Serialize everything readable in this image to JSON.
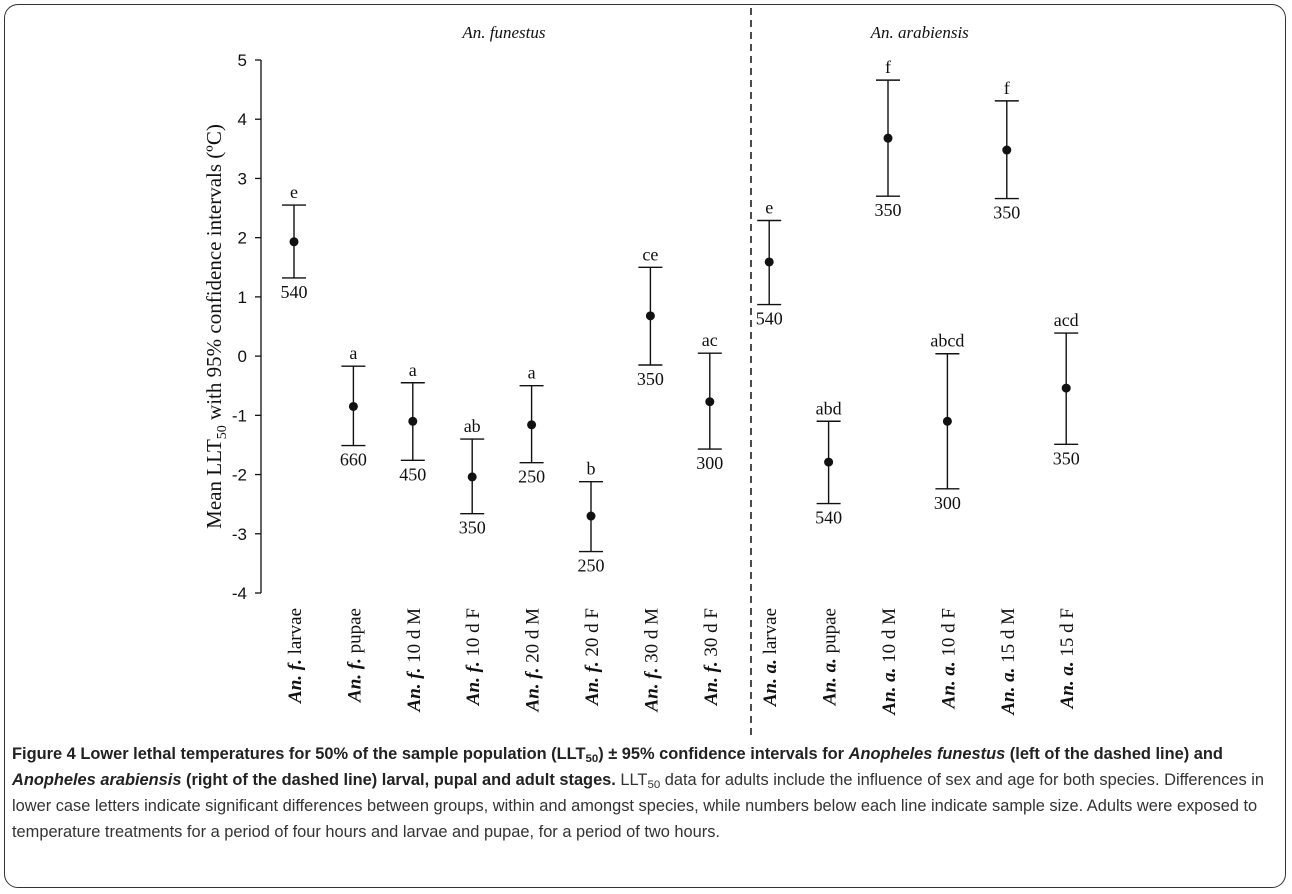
{
  "chart_data": {
    "type": "scatter",
    "style": "point estimates with 95% confidence interval error bars",
    "ylabel_parts": {
      "pre": "Mean LLT",
      "sub": "50",
      "post": " with 95% confidence intervals (ºC)"
    },
    "ylim": [
      -4,
      5
    ],
    "yticks": [
      5,
      4,
      3,
      2,
      1,
      0,
      -1,
      -2,
      -3,
      -4
    ],
    "grid": false,
    "group_divider_between": [
      7,
      8
    ],
    "groups": [
      {
        "name": "An. funestus",
        "indices": [
          0,
          1,
          2,
          3,
          4,
          5,
          6,
          7
        ]
      },
      {
        "name": "An. arabiensis",
        "indices": [
          8,
          9,
          10,
          11,
          12,
          13
        ]
      }
    ],
    "points": [
      {
        "sp": "An. f.",
        "stage": "larvae",
        "mean": 1.93,
        "lower": 1.32,
        "upper": 2.55,
        "letter": "e",
        "n": "540"
      },
      {
        "sp": "An. f.",
        "stage": "pupae",
        "mean": -0.85,
        "lower": -1.51,
        "upper": -0.17,
        "letter": "a",
        "n": "660"
      },
      {
        "sp": "An. f.",
        "stage": "10 d M",
        "mean": -1.1,
        "lower": -1.76,
        "upper": -0.45,
        "letter": "a",
        "n": "450"
      },
      {
        "sp": "An. f.",
        "stage": "10 d F",
        "mean": -2.04,
        "lower": -2.66,
        "upper": -1.4,
        "letter": "ab",
        "n": "350"
      },
      {
        "sp": "An. f.",
        "stage": "20 d M",
        "mean": -1.16,
        "lower": -1.8,
        "upper": -0.5,
        "letter": "a",
        "n": "250"
      },
      {
        "sp": "An. f.",
        "stage": "20 d F",
        "mean": -2.7,
        "lower": -3.3,
        "upper": -2.12,
        "letter": "b",
        "n": "250"
      },
      {
        "sp": "An. f.",
        "stage": "30 d M",
        "mean": 0.68,
        "lower": -0.15,
        "upper": 1.5,
        "letter": "ce",
        "n": "350"
      },
      {
        "sp": "An. f.",
        "stage": "30 d F",
        "mean": -0.77,
        "lower": -1.57,
        "upper": 0.05,
        "letter": "ac",
        "n": "300"
      },
      {
        "sp": "An. a.",
        "stage": "larvae",
        "mean": 1.59,
        "lower": 0.87,
        "upper": 2.29,
        "letter": "e",
        "n": "540"
      },
      {
        "sp": "An. a.",
        "stage": "pupae",
        "mean": -1.79,
        "lower": -2.49,
        "upper": -1.1,
        "letter": "abd",
        "n": "540"
      },
      {
        "sp": "An. a.",
        "stage": "10 d M",
        "mean": 3.68,
        "lower": 2.7,
        "upper": 4.66,
        "letter": "f",
        "n": "350"
      },
      {
        "sp": "An. a.",
        "stage": "10 d F",
        "mean": -1.1,
        "lower": -2.24,
        "upper": 0.04,
        "letter": "abcd",
        "n": "300"
      },
      {
        "sp": "An. a.",
        "stage": "15 d M",
        "mean": 3.48,
        "lower": 2.66,
        "upper": 4.31,
        "letter": "f",
        "n": "350"
      },
      {
        "sp": "An. a.",
        "stage": "15 d F",
        "mean": -0.54,
        "lower": -1.49,
        "upper": 0.39,
        "letter": "acd",
        "n": "350"
      }
    ]
  },
  "caption": {
    "figure_label": "Figure 4",
    "title_pre": " Lower lethal temperatures for 50% of the sample population (LLT",
    "title_sub": "50",
    "title_mid1": ") ± 95% confidence intervals for ",
    "species1": "Anopheles funestus",
    "title_mid2": " (left of the dashed line) and ",
    "species2": "Anopheles arabiensis",
    "title_post": " (right of the dashed line) larval, pupal and adult stages.",
    "body_pre": " LLT",
    "body_sub": "50",
    "body_post": " data for adults include the influence of sex and age for both species. Differences in lower case letters indicate significant differences between groups, within and amongst species, while numbers below each line indicate sample size. Adults were exposed to temperature treatments for a period of four hours and larvae and pupae, for a period of two hours."
  },
  "colors": {
    "ink": "#111111",
    "border": "#333333"
  }
}
